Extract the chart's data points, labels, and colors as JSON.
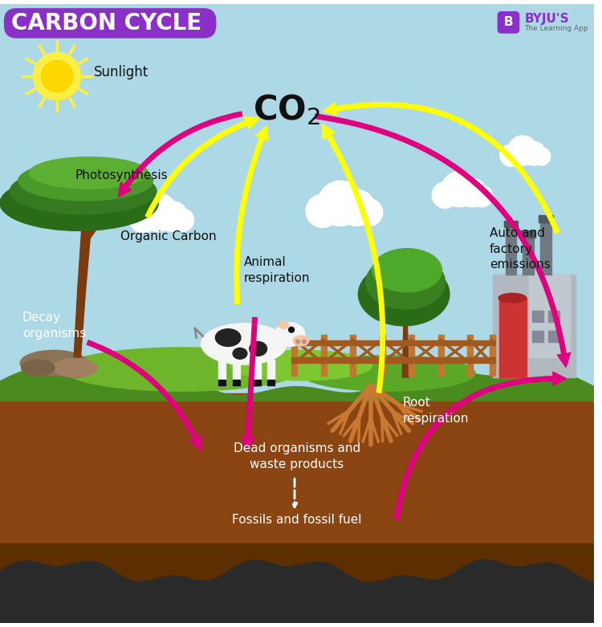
{
  "title": "CARBON CYCLE",
  "title_bg_color": "#8B2FC9",
  "title_text_color": "#FFFFFF",
  "sky_color": "#ADD8E6",
  "ground_color": "#5A8A1F",
  "soil_color_top": "#8B4513",
  "soil_color_bottom": "#5C2E00",
  "co2_label": "CO$_2$",
  "labels": {
    "sunlight": "Sunlight",
    "photosynthesis": "Photosynthesis",
    "organic_carbon": "Organic Carbon",
    "animal_respiration": "Animal\nrespiration",
    "decay_organisms": "Decay\norganisms",
    "root_respiration": "Root\nrespiration",
    "dead_organisms": "Dead organisms and\nwaste products",
    "fossils": "Fossils and fossil fuel",
    "auto_factory": "Auto and\nfactory\nemissions"
  },
  "arrow_color_yellow": "#FFFF00",
  "arrow_color_pink": "#E0007F",
  "byju_text": "BYJU'S",
  "byju_sub": "The Learning App",
  "byju_color": "#8B2FC9"
}
